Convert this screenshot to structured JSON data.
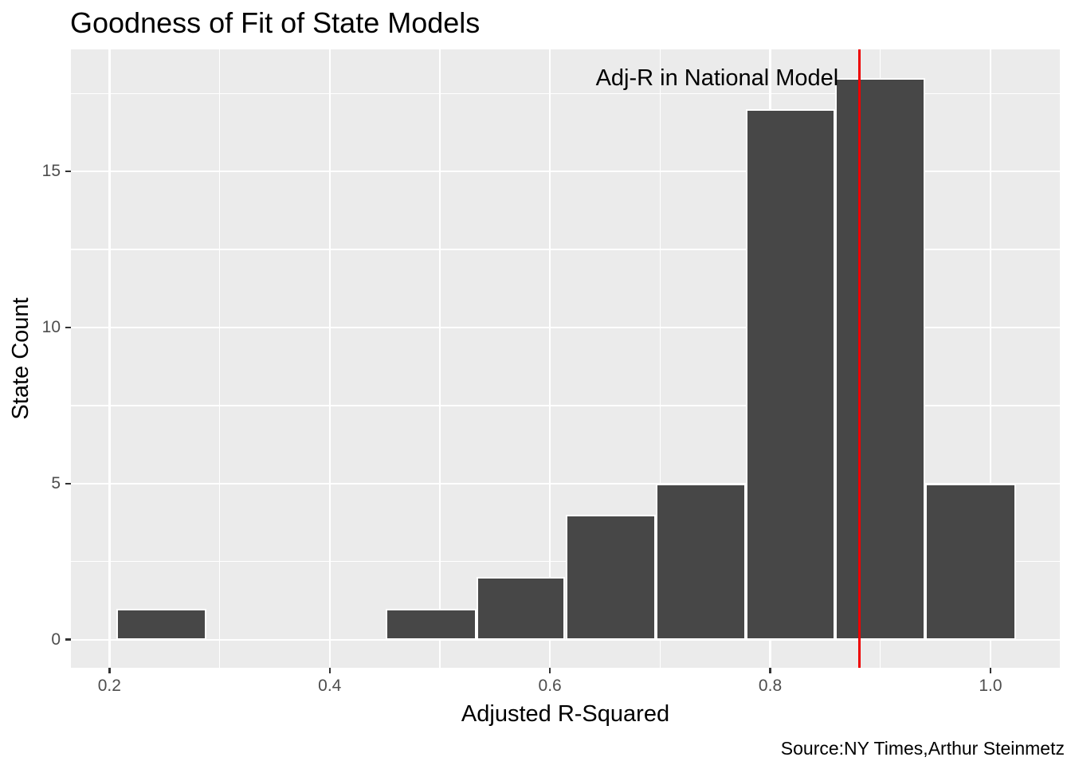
{
  "chart_data": {
    "type": "bar",
    "subtype": "histogram",
    "title": "Goodness of Fit of State Models",
    "xlabel": "Adjusted R-Squared",
    "ylabel": "State Count",
    "caption": "Source:NY Times,Arthur Steinmetz",
    "annotation": {
      "text": "Adj-R in National Model",
      "x": 0.862,
      "y": 18,
      "hjust": 1
    },
    "vline": {
      "x": 0.881,
      "color": "#EE0000"
    },
    "bins": [
      {
        "x0": 0.206,
        "x1": 0.288,
        "count": 1
      },
      {
        "x0": 0.288,
        "x1": 0.369,
        "count": 0
      },
      {
        "x0": 0.369,
        "x1": 0.451,
        "count": 0
      },
      {
        "x0": 0.451,
        "x1": 0.533,
        "count": 1
      },
      {
        "x0": 0.533,
        "x1": 0.614,
        "count": 2
      },
      {
        "x0": 0.614,
        "x1": 0.696,
        "count": 4
      },
      {
        "x0": 0.696,
        "x1": 0.778,
        "count": 5
      },
      {
        "x0": 0.778,
        "x1": 0.859,
        "count": 17
      },
      {
        "x0": 0.859,
        "x1": 0.941,
        "count": 18
      },
      {
        "x0": 0.941,
        "x1": 1.023,
        "count": 5
      }
    ],
    "x_axis": {
      "domain": [
        0.165,
        1.063
      ],
      "ticks": [
        0.2,
        0.4,
        0.6,
        0.8,
        1.0
      ],
      "tick_labels": [
        "0.2",
        "0.4",
        "0.6",
        "0.8",
        "1.0"
      ],
      "minor_ticks": [
        0.3,
        0.5,
        0.7,
        0.9
      ]
    },
    "y_axis": {
      "domain": [
        -0.9,
        18.91
      ],
      "ticks": [
        0,
        5,
        10,
        15
      ],
      "tick_labels": [
        "0",
        "5",
        "10",
        "15"
      ],
      "minor_ticks": [
        2.5,
        7.5,
        12.5,
        17.5
      ]
    },
    "grid": true,
    "legend": "none",
    "colors": {
      "bar_fill": "#474747",
      "bar_stroke": "#FFFFFF",
      "panel_bg": "#EBEBEB",
      "grid": "#FFFFFF",
      "vline": "#EE0000",
      "tick_text": "#4D4D4D",
      "text": "#000000"
    }
  }
}
